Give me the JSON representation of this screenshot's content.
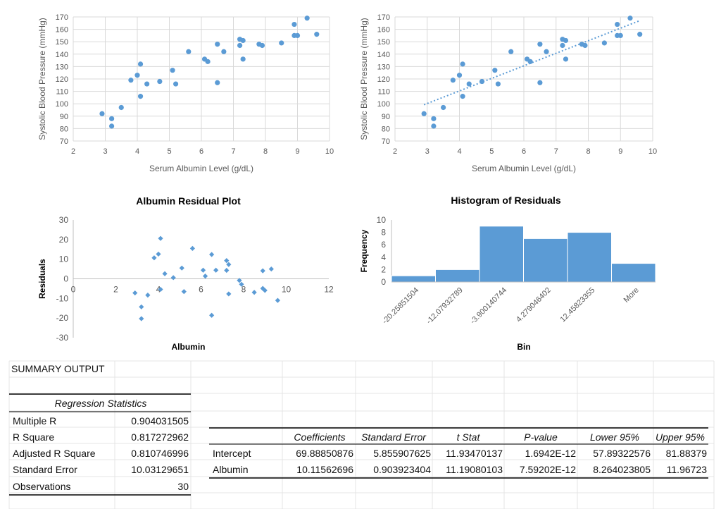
{
  "chart_data": [
    {
      "type": "scatter",
      "xlabel": "Serum Albumin Level (g/dL)",
      "ylabel": "Systolic Blood Pressure (mmHg)",
      "xlim": [
        2,
        10
      ],
      "ylim": [
        70,
        170
      ],
      "xticks": [
        2,
        3,
        4,
        5,
        6,
        7,
        8,
        9,
        10
      ],
      "yticks": [
        70,
        80,
        90,
        100,
        110,
        120,
        130,
        140,
        150,
        160,
        170
      ],
      "grid": true,
      "color": "#5b9bd5",
      "points": [
        [
          2.9,
          92
        ],
        [
          3.2,
          88
        ],
        [
          3.2,
          82
        ],
        [
          3.5,
          97
        ],
        [
          3.8,
          119
        ],
        [
          4.0,
          123
        ],
        [
          4.1,
          132
        ],
        [
          4.1,
          106
        ],
        [
          4.3,
          116
        ],
        [
          4.7,
          118
        ],
        [
          5.1,
          127
        ],
        [
          5.2,
          116
        ],
        [
          5.6,
          142
        ],
        [
          6.1,
          136
        ],
        [
          6.2,
          134
        ],
        [
          6.5,
          148
        ],
        [
          6.5,
          117
        ],
        [
          6.7,
          142
        ],
        [
          7.2,
          152
        ],
        [
          7.2,
          147
        ],
        [
          7.3,
          151
        ],
        [
          7.3,
          136
        ],
        [
          7.8,
          148
        ],
        [
          7.9,
          147
        ],
        [
          8.5,
          149
        ],
        [
          8.9,
          164
        ],
        [
          8.9,
          155
        ],
        [
          9.0,
          155
        ],
        [
          9.3,
          169
        ],
        [
          9.6,
          156
        ]
      ]
    },
    {
      "type": "scatter",
      "xlabel": "Serum Albumin Level (g/dL)",
      "ylabel": "Systolic Blood Pressure (mmHg)",
      "xlim": [
        2,
        10
      ],
      "ylim": [
        70,
        170
      ],
      "xticks": [
        2,
        3,
        4,
        5,
        6,
        7,
        8,
        9,
        10
      ],
      "yticks": [
        70,
        80,
        90,
        100,
        110,
        120,
        130,
        140,
        150,
        160,
        170
      ],
      "grid": true,
      "color": "#5b9bd5",
      "trendline": {
        "type": "linear",
        "intercept": 69.88850876,
        "slope": 10.11562696,
        "x_range": [
          2.9,
          9.6
        ],
        "style": "dotted"
      },
      "points": [
        [
          2.9,
          92
        ],
        [
          3.2,
          88
        ],
        [
          3.2,
          82
        ],
        [
          3.5,
          97
        ],
        [
          3.8,
          119
        ],
        [
          4.0,
          123
        ],
        [
          4.1,
          132
        ],
        [
          4.1,
          106
        ],
        [
          4.3,
          116
        ],
        [
          4.7,
          118
        ],
        [
          5.1,
          127
        ],
        [
          5.2,
          116
        ],
        [
          5.6,
          142
        ],
        [
          6.1,
          136
        ],
        [
          6.2,
          134
        ],
        [
          6.5,
          148
        ],
        [
          6.5,
          117
        ],
        [
          6.7,
          142
        ],
        [
          7.2,
          152
        ],
        [
          7.2,
          147
        ],
        [
          7.3,
          151
        ],
        [
          7.3,
          136
        ],
        [
          7.8,
          148
        ],
        [
          7.9,
          147
        ],
        [
          8.5,
          149
        ],
        [
          8.9,
          164
        ],
        [
          8.9,
          155
        ],
        [
          9.0,
          155
        ],
        [
          9.3,
          169
        ],
        [
          9.6,
          156
        ]
      ]
    },
    {
      "type": "scatter",
      "title": "Albumin  Residual Plot",
      "xlabel": "Albumin",
      "ylabel": "Residuals",
      "xlim": [
        0,
        12
      ],
      "ylim": [
        -30,
        30
      ],
      "xticks": [
        0,
        2,
        4,
        6,
        8,
        10,
        12
      ],
      "yticks": [
        -30,
        -20,
        -10,
        0,
        10,
        20,
        30
      ],
      "grid": false,
      "marker": "diamond",
      "color": "#5b9bd5",
      "points": [
        [
          2.9,
          -7.2
        ],
        [
          3.2,
          -14.3
        ],
        [
          3.2,
          -20.3
        ],
        [
          3.5,
          -8.3
        ],
        [
          3.8,
          10.7
        ],
        [
          4.0,
          12.6
        ],
        [
          4.1,
          20.6
        ],
        [
          4.1,
          -5.4
        ],
        [
          4.3,
          2.6
        ],
        [
          4.7,
          0.6
        ],
        [
          5.1,
          5.5
        ],
        [
          5.2,
          -6.5
        ],
        [
          5.6,
          15.5
        ],
        [
          6.1,
          4.4
        ],
        [
          6.2,
          1.4
        ],
        [
          6.5,
          12.4
        ],
        [
          6.5,
          -18.6
        ],
        [
          6.7,
          4.4
        ],
        [
          7.2,
          9.3
        ],
        [
          7.2,
          4.3
        ],
        [
          7.3,
          7.3
        ],
        [
          7.3,
          -7.7
        ],
        [
          7.8,
          -0.8
        ],
        [
          7.9,
          -2.8
        ],
        [
          8.5,
          -6.9
        ],
        [
          8.9,
          4.1
        ],
        [
          8.9,
          -4.9
        ],
        [
          9.0,
          -5.9
        ],
        [
          9.3,
          5.0
        ],
        [
          9.6,
          -11.0
        ]
      ]
    },
    {
      "type": "bar",
      "title": "Histogram of Residuals",
      "xlabel": "Bin",
      "ylabel": "Frequency",
      "categories": [
        "-20.25851504",
        "-12.07932789",
        "-3.900140744",
        "4.279046402",
        "12.45823355",
        "More"
      ],
      "values": [
        1,
        2,
        9,
        7,
        8,
        3
      ],
      "ylim": [
        0,
        10
      ],
      "yticks": [
        0,
        2,
        4,
        6,
        8,
        10
      ],
      "grid": false,
      "color": "#5b9bd5"
    }
  ],
  "summary": {
    "title": "SUMMARY OUTPUT",
    "regression_header": "Regression Statistics",
    "stats": [
      {
        "label": "Multiple R",
        "value": "0.904031505"
      },
      {
        "label": "R Square",
        "value": "0.817272962"
      },
      {
        "label": "Adjusted R Square",
        "value": "0.810746996"
      },
      {
        "label": "Standard Error",
        "value": "10.03129651"
      },
      {
        "label": "Observations",
        "value": "30"
      }
    ],
    "coef_headers": [
      "Coefficients",
      "Standard Error",
      "t Stat",
      "P-value",
      "Lower 95%",
      "Upper 95%"
    ],
    "coef_rows": [
      {
        "label": "Intercept",
        "values": [
          "69.88850876",
          "5.855907625",
          "11.93470137",
          "1.6942E-12",
          "57.89322576",
          "81.88379"
        ]
      },
      {
        "label": "Albumin",
        "values": [
          "10.11562696",
          "0.903923404",
          "11.19080103",
          "7.59202E-12",
          "8.264023805",
          "11.96723"
        ]
      }
    ]
  }
}
